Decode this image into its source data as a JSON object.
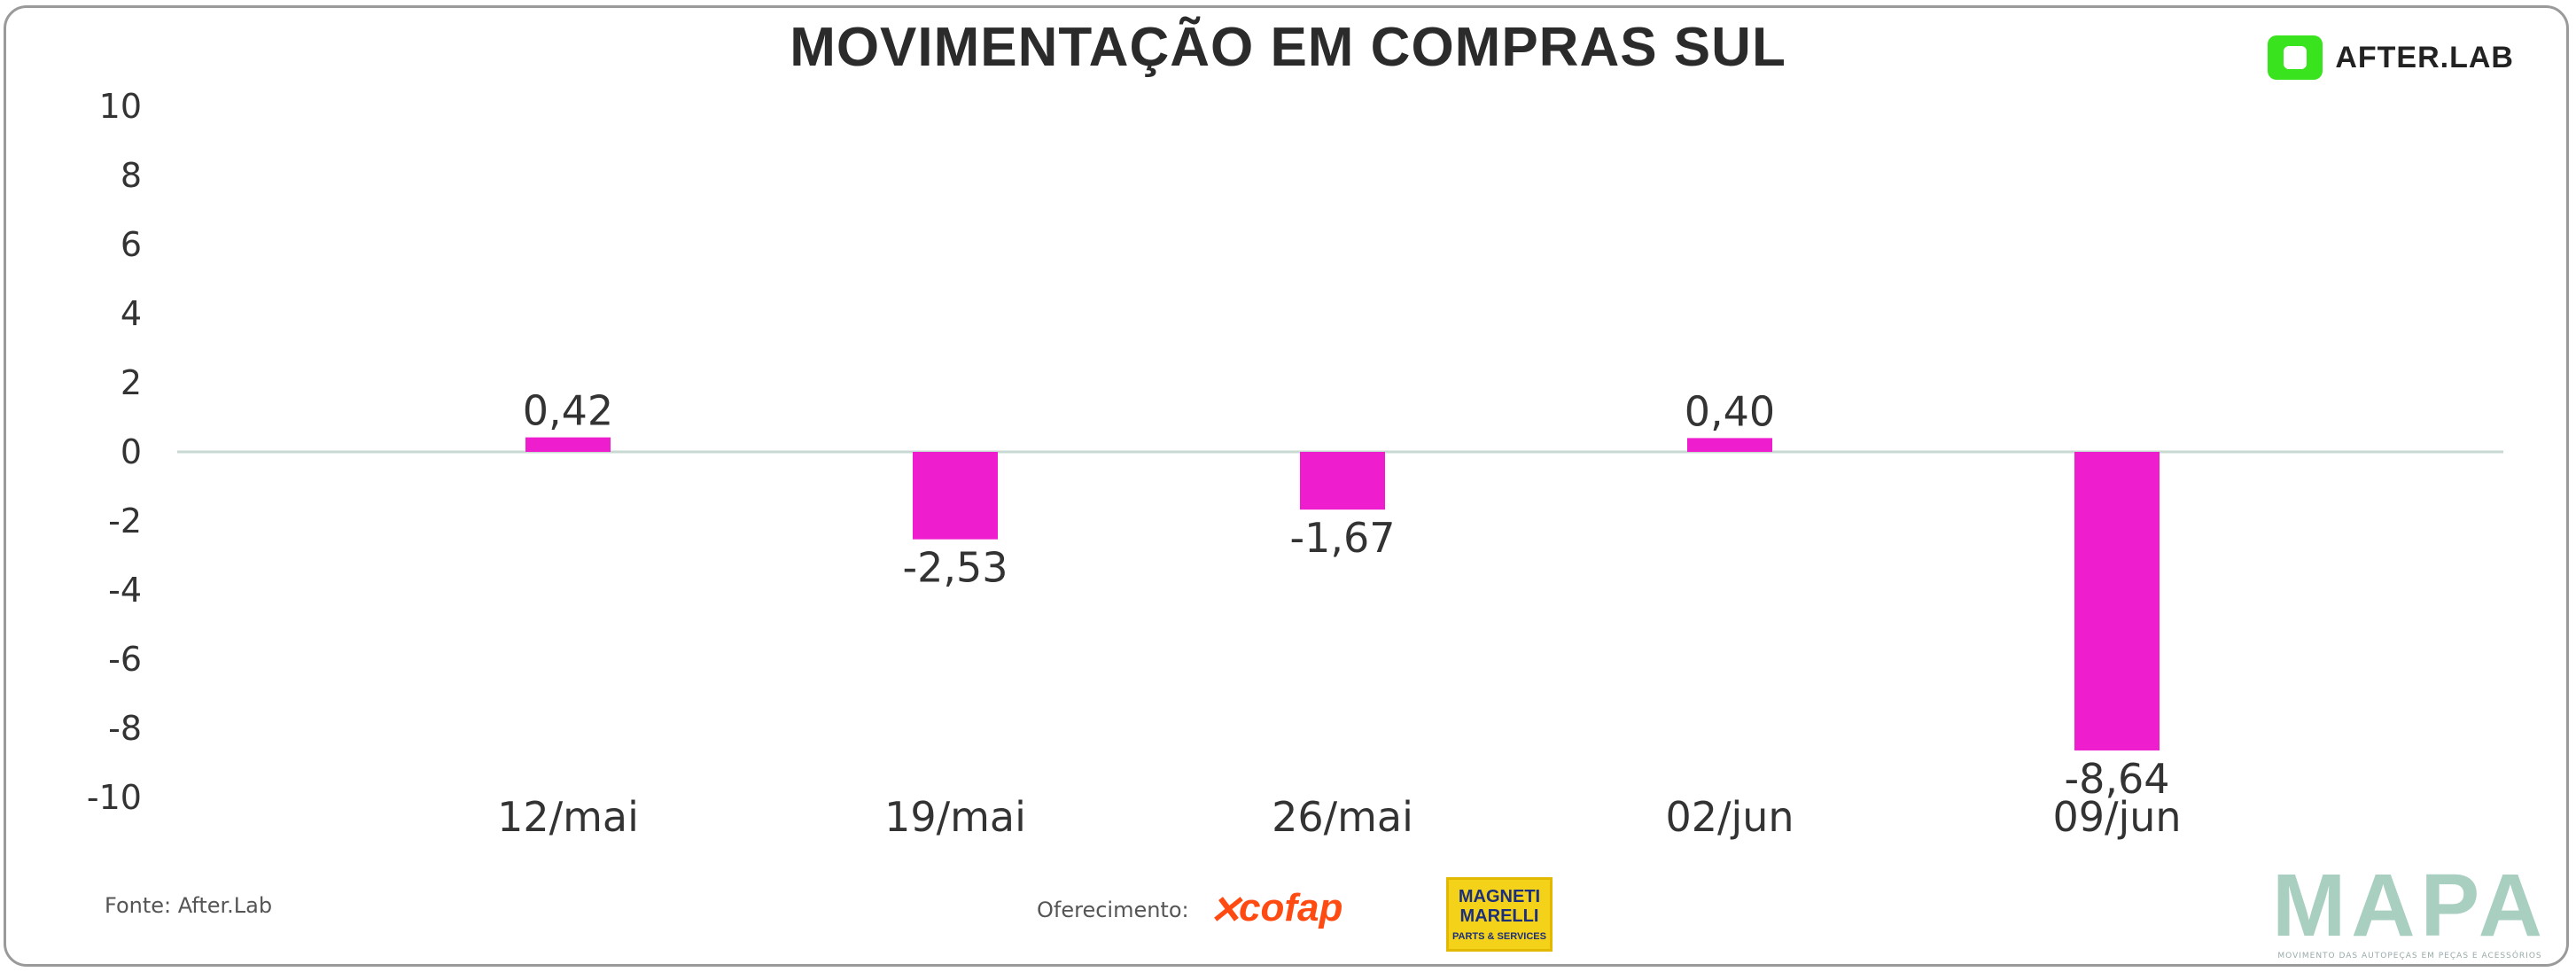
{
  "header": {
    "title": "MOVIMENTAÇÃO EM COMPRAS SUL",
    "brand": "AFTER.LAB"
  },
  "footer": {
    "source": "Fonte: After.Lab",
    "sponsor_label": "Oferecimento:",
    "sponsors": [
      "cofap",
      "MAGNETI MARELLI",
      "PARTS & SERVICES"
    ],
    "mapa_title": "MAPA",
    "mapa_subtitle": "MOVIMENTO DAS AUTOPEÇAS EM PEÇAS E ACESSÓRIOS"
  },
  "colors": {
    "bar": "#ee1ecf",
    "zero_line": "#c8d8d2",
    "brand_green": "#39e31d",
    "mapa": "#a9cfc1"
  },
  "chart_data": {
    "type": "bar",
    "title": "MOVIMENTAÇÃO EM COMPRAS SUL",
    "categories": [
      "12/mai",
      "19/mai",
      "26/mai",
      "02/jun",
      "09/jun"
    ],
    "values": [
      0.42,
      -2.53,
      -1.67,
      0.4,
      -8.64
    ],
    "value_labels": [
      "0,42",
      "-2,53",
      "-1,67",
      "0,40",
      "-8,64"
    ],
    "ylim": [
      -10,
      10
    ],
    "yticks": [
      10,
      8,
      6,
      4,
      2,
      0,
      -2,
      -4,
      -6,
      -8,
      -10
    ],
    "grid": false,
    "legend": "none"
  }
}
